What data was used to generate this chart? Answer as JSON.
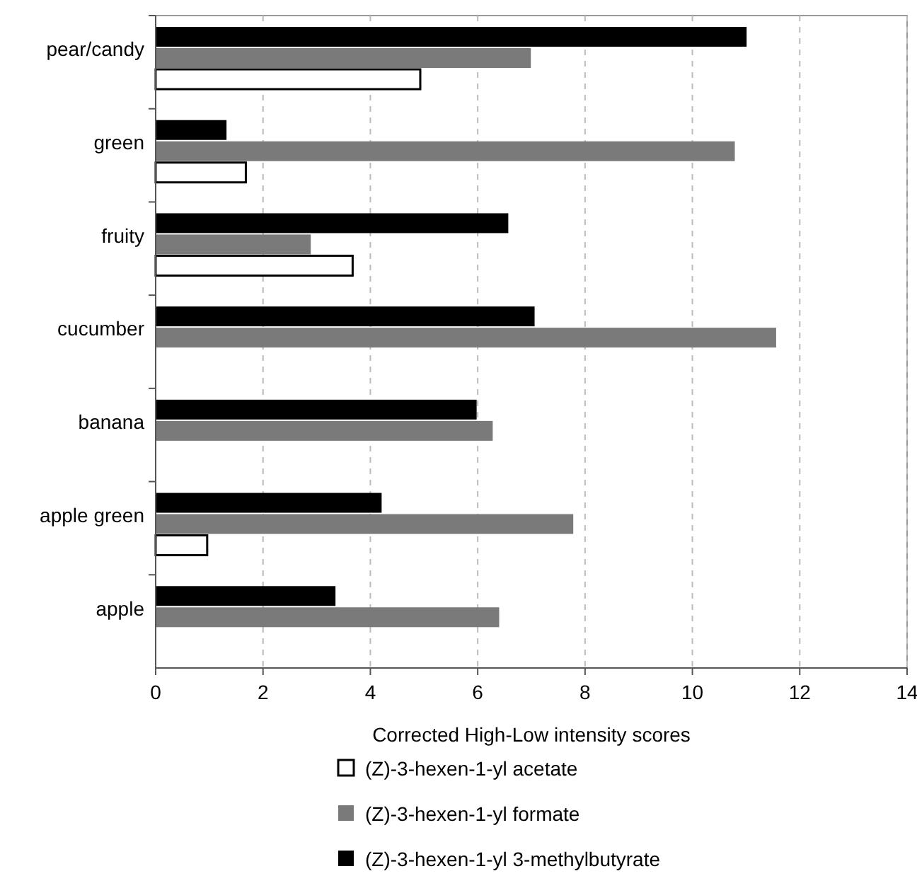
{
  "chart_data": {
    "type": "bar",
    "orientation": "horizontal",
    "xlabel": "Corrected High-Low intensity scores",
    "categories": [
      "pear/candy",
      "green",
      "fruity",
      "cucumber",
      "banana",
      "apple green",
      "apple"
    ],
    "series": [
      {
        "name": "(Z)-3-hexen-1-yl acetate",
        "color": "#ffffff",
        "values": [
          4.93,
          1.68,
          3.67,
          null,
          null,
          0.96,
          null
        ]
      },
      {
        "name": "(Z)-3-hexen-1-yl formate",
        "color": "#7a7a7a",
        "values": [
          6.99,
          10.79,
          2.89,
          11.56,
          6.28,
          7.78,
          6.4
        ]
      },
      {
        "name": "(Z)-3-hexen-1-yl 3-methylbutyrate",
        "color": "#000000",
        "values": [
          11.01,
          1.32,
          6.57,
          7.06,
          5.98,
          4.21,
          3.35
        ]
      }
    ],
    "xlim": [
      0,
      14
    ],
    "xticks": [
      0,
      2,
      4,
      6,
      8,
      10,
      12,
      14
    ],
    "grid": "x",
    "legend": "bottom"
  }
}
